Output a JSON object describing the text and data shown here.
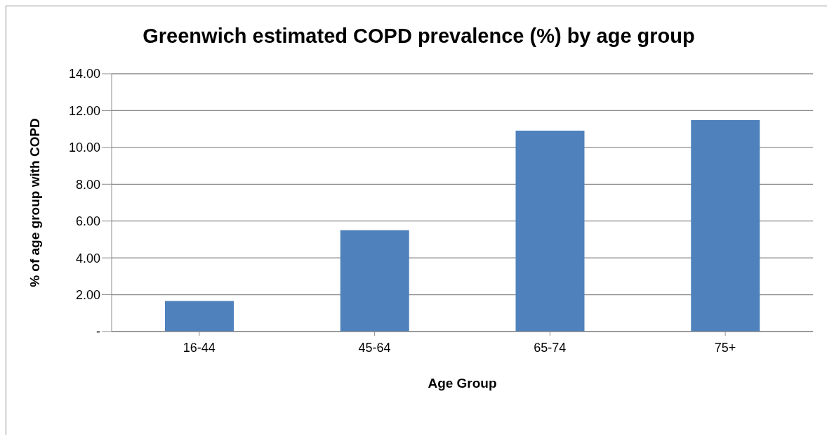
{
  "chart_data": {
    "type": "bar",
    "title": "Greenwich estimated COPD prevalence (%) by age group",
    "xlabel": "Age Group",
    "ylabel": "% of age group with COPD",
    "categories": [
      "16-44",
      "45-64",
      "65-74",
      "75+"
    ],
    "values": [
      1.66,
      5.5,
      10.91,
      11.48
    ],
    "color": "#4f81bd",
    "ylim": [
      0,
      14
    ],
    "yticks": [
      {
        "value": 0,
        "label": "-"
      },
      {
        "value": 2,
        "label": "2.00"
      },
      {
        "value": 4,
        "label": "4.00"
      },
      {
        "value": 6,
        "label": "6.00"
      },
      {
        "value": 8,
        "label": "8.00"
      },
      {
        "value": 10,
        "label": "10.00"
      },
      {
        "value": 12,
        "label": "12.00"
      },
      {
        "value": 14,
        "label": "14.00"
      }
    ],
    "grid": "y",
    "legend": false
  }
}
